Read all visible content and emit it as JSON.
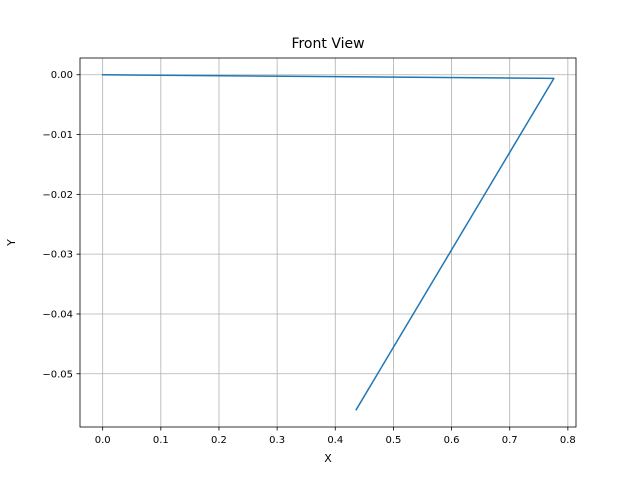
{
  "chart_data": {
    "type": "line",
    "title": "Front View",
    "xlabel": "X",
    "ylabel": "Y",
    "xlim": [
      -0.039,
      0.814
    ],
    "ylim": [
      -0.0589,
      0.0028
    ],
    "grid": true,
    "x_ticks": [
      0.0,
      0.1,
      0.2,
      0.3,
      0.4,
      0.5,
      0.6,
      0.7,
      0.8
    ],
    "x_tick_labels": [
      "0.0",
      "0.1",
      "0.2",
      "0.3",
      "0.4",
      "0.5",
      "0.6",
      "0.7",
      "0.8"
    ],
    "y_ticks": [
      0.0,
      -0.01,
      -0.02,
      -0.03,
      -0.04,
      -0.05
    ],
    "y_tick_labels": [
      "0.00",
      "−0.01",
      "−0.02",
      "−0.03",
      "−0.04",
      "−0.05"
    ],
    "series": [
      {
        "color": "#1f77b4",
        "x": [
          0.0,
          0.776,
          0.436
        ],
        "y": [
          0.0,
          -0.0006,
          -0.056
        ]
      }
    ]
  }
}
